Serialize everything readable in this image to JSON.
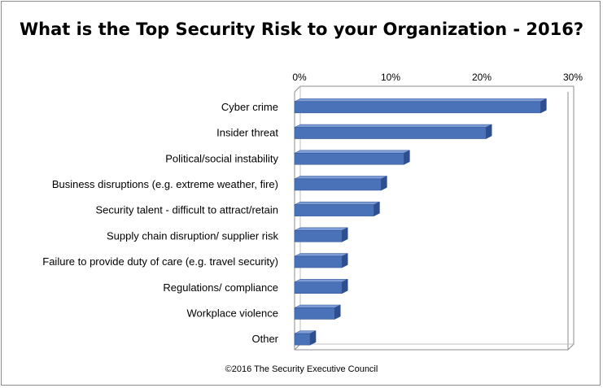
{
  "chart_data": {
    "type": "bar",
    "orientation": "horizontal",
    "title": "What is the Top Security Risk to your Organization - 2016?",
    "categories": [
      "Cyber crime",
      "Insider threat",
      "Political/social instability",
      "Business disruptions (e.g. extreme weather, fire)",
      "Security talent - difficult to attract/retain",
      "Supply chain disruption/ supplier risk",
      "Failure to provide duty of care (e.g. travel security)",
      "Regulations/ compliance",
      "Workplace violence",
      "Other"
    ],
    "values": [
      27,
      21,
      12,
      9.5,
      8.7,
      5.2,
      5.2,
      5.2,
      4.4,
      1.7
    ],
    "xlim": [
      0,
      30
    ],
    "xticks": [
      "0%",
      "10%",
      "20%",
      "30%"
    ],
    "grid": false,
    "legend": "none",
    "bar_color": "#4a72b8",
    "bar_top_color": "#7c9dd6",
    "bar_side_color": "#2e4f8f"
  },
  "footer": "©2016 The Security Executive Council"
}
